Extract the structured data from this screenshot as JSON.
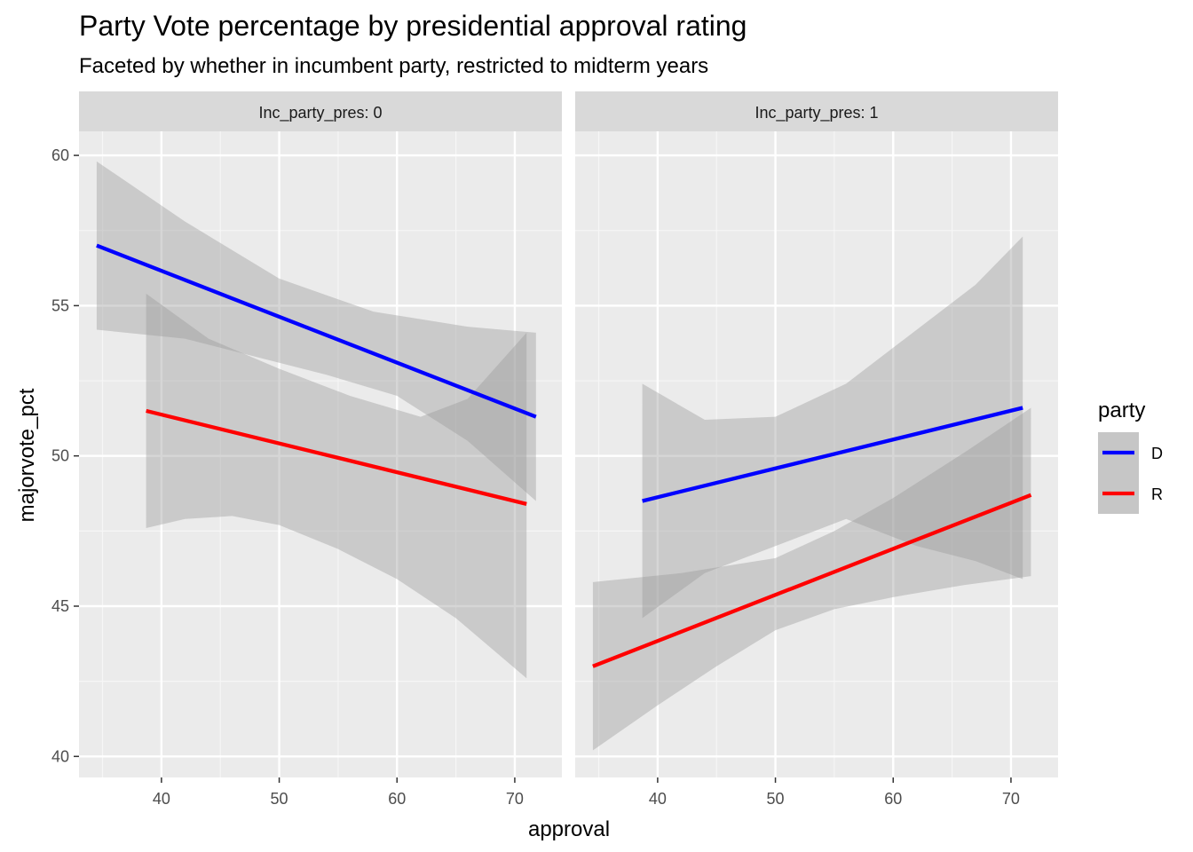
{
  "chart_data": {
    "type": "line",
    "title": "Party Vote percentage by presidential approval rating",
    "subtitle": "Faceted by whether in incumbent party, restricted to midterm years",
    "xlabel": "approval",
    "ylabel": "majorvote_pct",
    "xlim": [
      33,
      74
    ],
    "ylim": [
      39.3,
      60.8
    ],
    "x_ticks": [
      40,
      50,
      60,
      70
    ],
    "y_ticks": [
      40,
      45,
      50,
      55,
      60
    ],
    "grid": true,
    "legend": {
      "title": "party",
      "placement": "right",
      "entries": [
        {
          "label": "D",
          "color": "#0000ff"
        },
        {
          "label": "R",
          "color": "#ff0000"
        }
      ]
    },
    "facets": [
      {
        "label": "Inc_party_pres: 0",
        "series": [
          {
            "name": "D",
            "color": "#0000ff",
            "x": [
              34.5,
              71.8
            ],
            "y": [
              57.0,
              51.3
            ],
            "band_upper": [
              [
                34.5,
                59.8
              ],
              [
                42,
                57.8
              ],
              [
                50,
                55.9
              ],
              [
                58,
                54.8
              ],
              [
                66,
                54.3
              ],
              [
                71.8,
                54.1
              ]
            ],
            "band_lower": [
              [
                34.5,
                54.2
              ],
              [
                42,
                53.9
              ],
              [
                48,
                53.3
              ],
              [
                54,
                52.7
              ],
              [
                60,
                52.0
              ],
              [
                66,
                50.5
              ],
              [
                71.8,
                48.5
              ]
            ]
          },
          {
            "name": "R",
            "color": "#ff0000",
            "x": [
              38.7,
              71.0
            ],
            "y": [
              51.5,
              48.4
            ],
            "band_upper": [
              [
                38.7,
                55.4
              ],
              [
                44,
                53.9
              ],
              [
                50,
                52.9
              ],
              [
                56,
                52.0
              ],
              [
                62,
                51.3
              ],
              [
                66,
                51.9
              ],
              [
                71.0,
                54.1
              ]
            ],
            "band_lower": [
              [
                38.7,
                47.6
              ],
              [
                42,
                47.9
              ],
              [
                46,
                48.0
              ],
              [
                50,
                47.7
              ],
              [
                55,
                46.9
              ],
              [
                60,
                45.9
              ],
              [
                65,
                44.6
              ],
              [
                71.0,
                42.6
              ]
            ]
          }
        ]
      },
      {
        "label": "Inc_party_pres: 1",
        "series": [
          {
            "name": "D",
            "color": "#0000ff",
            "x": [
              38.7,
              71.0
            ],
            "y": [
              48.5,
              51.6
            ],
            "band_upper": [
              [
                38.7,
                52.4
              ],
              [
                44,
                51.2
              ],
              [
                50,
                51.3
              ],
              [
                56,
                52.4
              ],
              [
                62,
                54.2
              ],
              [
                67,
                55.7
              ],
              [
                71.0,
                57.3
              ]
            ],
            "band_lower": [
              [
                38.7,
                44.6
              ],
              [
                44,
                46.1
              ],
              [
                50,
                47.0
              ],
              [
                56,
                47.9
              ],
              [
                62,
                47.0
              ],
              [
                67,
                46.5
              ],
              [
                71.0,
                45.9
              ]
            ]
          },
          {
            "name": "R",
            "color": "#ff0000",
            "x": [
              34.5,
              71.7
            ],
            "y": [
              43.0,
              48.7
            ],
            "band_upper": [
              [
                34.5,
                45.8
              ],
              [
                42,
                46.1
              ],
              [
                50,
                46.6
              ],
              [
                55,
                47.5
              ],
              [
                60,
                48.6
              ],
              [
                66,
                50.1
              ],
              [
                71.7,
                51.6
              ]
            ],
            "band_lower": [
              [
                34.5,
                40.2
              ],
              [
                40,
                41.7
              ],
              [
                45,
                43.0
              ],
              [
                50,
                44.2
              ],
              [
                55,
                44.9
              ],
              [
                60,
                45.3
              ],
              [
                66,
                45.7
              ],
              [
                71.7,
                46.0
              ]
            ]
          }
        ]
      }
    ]
  }
}
